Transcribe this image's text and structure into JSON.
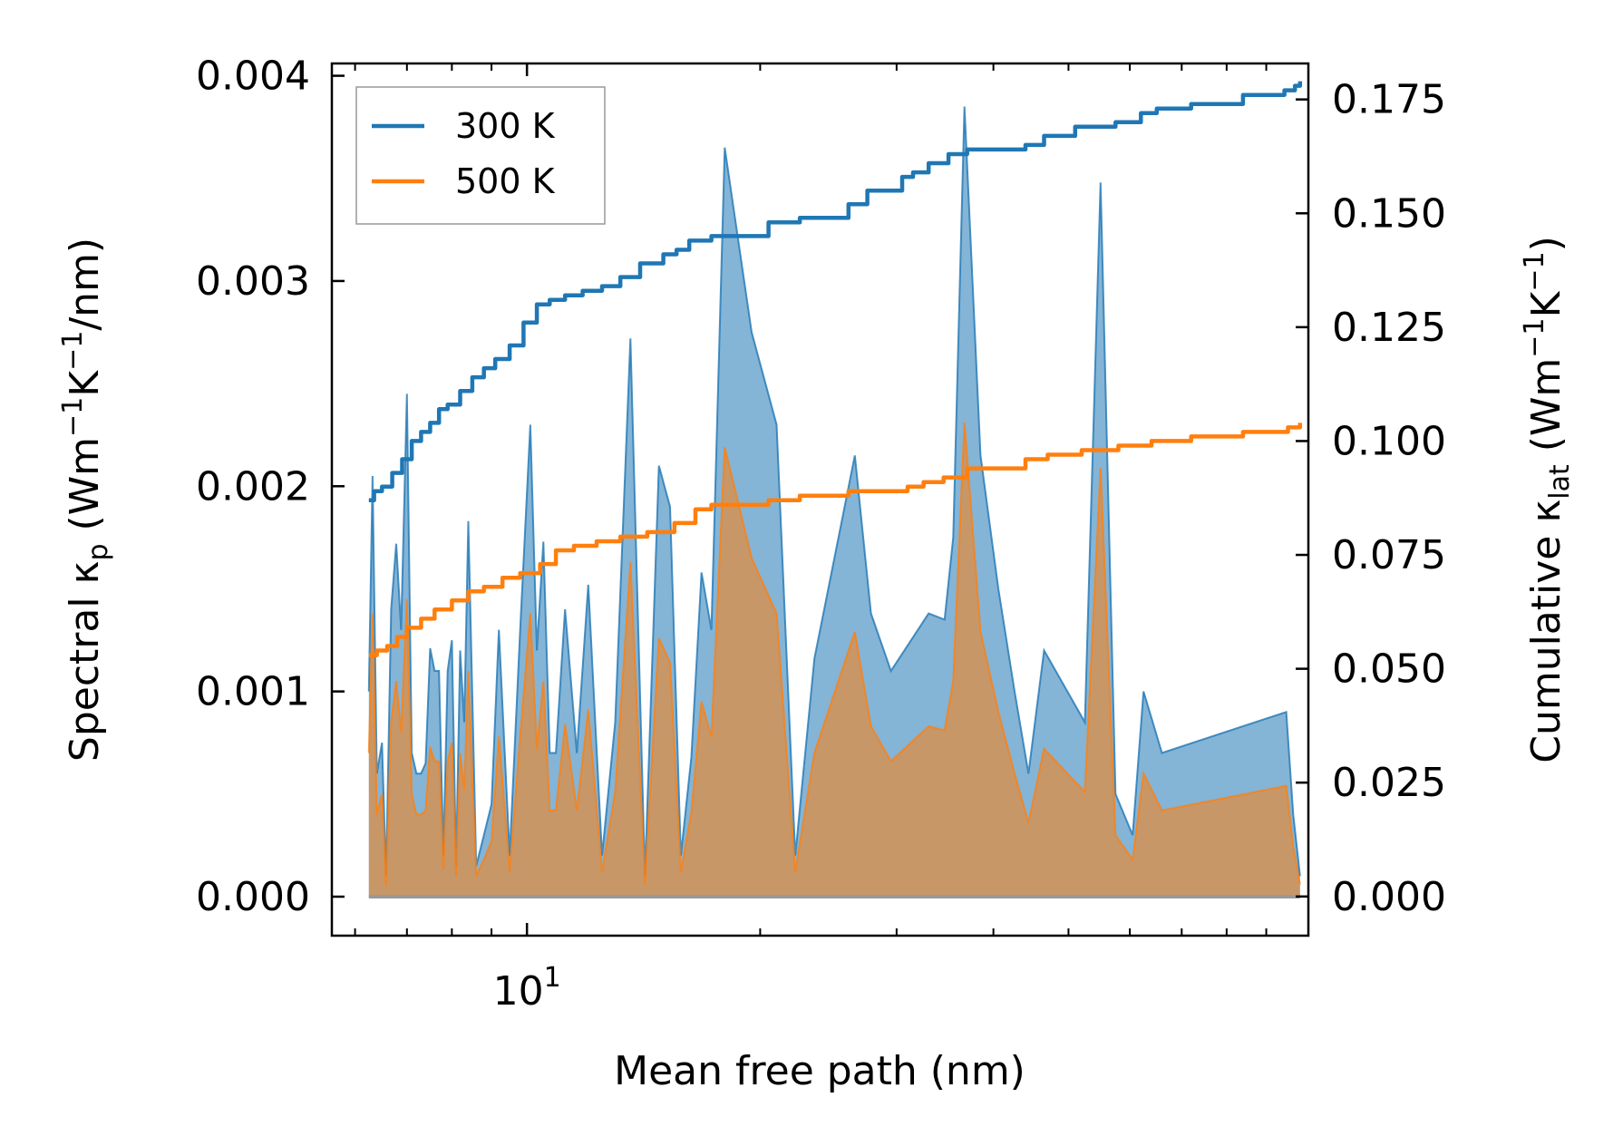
{
  "chart_data": {
    "type": "line",
    "x_scale": "log",
    "xlabel": "Mean free path (nm)",
    "ylabel_left": "Spectral κp (Wm−1K−1/nm)",
    "ylabel_left_parts": {
      "pre": "Spectral κ",
      "sub": "p",
      "mid1": " (Wm",
      "sup1": "−1",
      "mid2": "K",
      "sup2": "−1",
      "post": "/nm)"
    },
    "ylabel_right": "Cumulative κlat (Wm−1K−1)",
    "ylabel_right_parts": {
      "pre": "Cumulative κ",
      "sub": "lat",
      "mid1": " (Wm",
      "sup1": "−1",
      "mid2": "K",
      "sup2": "−1",
      "post": ")"
    },
    "xlim": [
      5.6,
      102
    ],
    "ylim_left": [
      -0.00019,
      0.00406
    ],
    "ylim_right": [
      -0.0086,
      0.1829
    ],
    "x_ticks": [
      {
        "value": 10,
        "base": "10",
        "exp": "1"
      }
    ],
    "x_minor_ticks": [
      6,
      7,
      8,
      9,
      20,
      30,
      40,
      50,
      60,
      70,
      80,
      90
    ],
    "y_left_ticks": [
      {
        "value": 0.0,
        "label": "0.000"
      },
      {
        "value": 0.001,
        "label": "0.001"
      },
      {
        "value": 0.002,
        "label": "0.002"
      },
      {
        "value": 0.003,
        "label": "0.003"
      },
      {
        "value": 0.004,
        "label": "0.004"
      }
    ],
    "y_right_ticks": [
      {
        "value": 0.0,
        "label": "0.000"
      },
      {
        "value": 0.025,
        "label": "0.025"
      },
      {
        "value": 0.05,
        "label": "0.050"
      },
      {
        "value": 0.075,
        "label": "0.075"
      },
      {
        "value": 0.1,
        "label": "0.100"
      },
      {
        "value": 0.125,
        "label": "0.125"
      },
      {
        "value": 0.15,
        "label": "0.150"
      },
      {
        "value": 0.175,
        "label": "0.175"
      }
    ],
    "legend": {
      "position": "top-left",
      "entries": [
        "300 K",
        "500 K"
      ]
    },
    "series": [
      {
        "name": "300 K",
        "color": "#1f77b4",
        "spectral": {
          "x": [
            6.25,
            6.32,
            6.4,
            6.5,
            6.58,
            6.68,
            6.78,
            6.88,
            7.0,
            7.1,
            7.2,
            7.3,
            7.4,
            7.5,
            7.6,
            7.7,
            7.8,
            7.9,
            8.0,
            8.1,
            8.2,
            8.3,
            8.4,
            8.6,
            8.8,
            9.0,
            9.2,
            9.5,
            9.8,
            10.1,
            10.3,
            10.5,
            10.7,
            10.9,
            11.2,
            11.6,
            12.0,
            12.5,
            13.0,
            13.6,
            14.2,
            14.8,
            15.3,
            15.8,
            16.3,
            16.8,
            17.3,
            18.0,
            19.5,
            21.0,
            22.2,
            23.5,
            26.5,
            27.8,
            29.5,
            33.0,
            34.6,
            35.5,
            36.7,
            38.5,
            40.6,
            42.6,
            44.4,
            46.5,
            52.5,
            55.0,
            57.5,
            60.5,
            62.5,
            66.0,
            95.5,
            97.5,
            99.5
          ],
          "y": [
            0.001,
            0.00205,
            0.0006,
            0.00075,
            0.0001,
            0.0014,
            0.00172,
            0.0013,
            0.00245,
            0.0007,
            0.0006,
            0.0006,
            0.00065,
            0.00121,
            0.0011,
            0.0011,
            0.0002,
            0.0011,
            0.00125,
            0.00015,
            0.0012,
            0.00085,
            0.00183,
            0.00015,
            0.0003,
            0.00045,
            0.0013,
            0.0002,
            0.0013,
            0.0023,
            0.0012,
            0.00173,
            0.0007,
            0.0007,
            0.0014,
            0.0007,
            0.00152,
            0.0002,
            0.00085,
            0.00272,
            0.0001,
            0.0021,
            0.0019,
            0.0002,
            0.00068,
            0.00158,
            0.0013,
            0.00365,
            0.00275,
            0.0023,
            0.0002,
            0.00116,
            0.00215,
            0.00138,
            0.0011,
            0.00138,
            0.00135,
            0.00175,
            0.00385,
            0.00215,
            0.0015,
            0.001,
            0.0006,
            0.0012,
            0.00085,
            0.00348,
            0.0005,
            0.0003,
            0.001,
            0.0007,
            0.0009,
            0.0004,
            0.0001
          ]
        },
        "cumulative": {
          "x": [
            6.25,
            6.35,
            6.5,
            6.7,
            6.9,
            7.1,
            7.3,
            7.5,
            7.7,
            7.9,
            8.2,
            8.5,
            8.8,
            9.1,
            9.5,
            9.9,
            10.3,
            10.7,
            11.2,
            11.8,
            12.5,
            13.2,
            14.0,
            15.0,
            15.6,
            16.2,
            17.3,
            20.5,
            22.5,
            26.0,
            27.5,
            30.5,
            31.5,
            33.0,
            35.0,
            37.0,
            44.0,
            46.5,
            51.0,
            57.5,
            62.0,
            65.0,
            72.0,
            84.0,
            95.0,
            98.0,
            99.5
          ],
          "y": [
            0.087,
            0.089,
            0.09,
            0.093,
            0.096,
            0.1,
            0.102,
            0.104,
            0.107,
            0.108,
            0.111,
            0.114,
            0.116,
            0.118,
            0.121,
            0.126,
            0.13,
            0.131,
            0.132,
            0.133,
            0.134,
            0.136,
            0.139,
            0.141,
            0.142,
            0.144,
            0.145,
            0.148,
            0.149,
            0.152,
            0.155,
            0.158,
            0.159,
            0.161,
            0.163,
            0.164,
            0.165,
            0.167,
            0.169,
            0.17,
            0.172,
            0.173,
            0.174,
            0.176,
            0.177,
            0.178,
            0.179
          ]
        }
      },
      {
        "name": "500 K",
        "color": "#ff7f0e",
        "spectral": {
          "x": [
            6.25,
            6.32,
            6.4,
            6.5,
            6.58,
            6.68,
            6.78,
            6.88,
            7.0,
            7.1,
            7.2,
            7.3,
            7.4,
            7.5,
            7.6,
            7.7,
            7.8,
            7.9,
            8.0,
            8.1,
            8.2,
            8.3,
            8.4,
            8.6,
            8.8,
            9.0,
            9.2,
            9.5,
            9.8,
            10.1,
            10.3,
            10.5,
            10.7,
            10.9,
            11.2,
            11.6,
            12.0,
            12.5,
            13.0,
            13.6,
            14.2,
            14.8,
            15.3,
            15.8,
            16.3,
            16.8,
            17.3,
            18.0,
            19.5,
            21.0,
            22.2,
            23.5,
            26.5,
            27.8,
            29.5,
            33.0,
            34.6,
            35.5,
            36.7,
            38.5,
            40.6,
            42.6,
            44.4,
            46.5,
            52.5,
            55.0,
            57.5,
            60.5,
            62.5,
            66.0,
            95.5,
            97.5,
            99.5
          ],
          "y": [
            0.0007,
            0.00138,
            0.0004,
            0.0005,
            5e-05,
            0.00085,
            0.00105,
            0.0008,
            0.00145,
            0.0005,
            0.0004,
            0.0004,
            0.00042,
            0.00073,
            0.00066,
            0.00066,
            0.00013,
            0.00066,
            0.00075,
            0.0001,
            0.0007,
            0.00052,
            0.0011,
            0.0001,
            0.00018,
            0.00027,
            0.00078,
            0.00012,
            0.00078,
            0.00138,
            0.00072,
            0.00105,
            0.00042,
            0.00042,
            0.00084,
            0.00042,
            0.00091,
            0.00012,
            0.00051,
            0.00163,
            6e-05,
            0.00126,
            0.00114,
            0.00012,
            0.00041,
            0.00095,
            0.00078,
            0.00219,
            0.00165,
            0.00138,
            0.00012,
            0.0007,
            0.00129,
            0.00083,
            0.00066,
            0.00083,
            0.00081,
            0.00105,
            0.00231,
            0.00129,
            0.0009,
            0.0006,
            0.00036,
            0.00072,
            0.00051,
            0.00209,
            0.0003,
            0.00018,
            0.0006,
            0.00042,
            0.00054,
            0.00024,
            6e-05
          ]
        },
        "cumulative": {
          "x": [
            6.25,
            6.4,
            6.6,
            6.8,
            7.0,
            7.3,
            7.6,
            8.0,
            8.4,
            8.8,
            9.3,
            9.8,
            10.4,
            10.9,
            11.5,
            12.3,
            13.2,
            14.3,
            15.5,
            16.5,
            17.3,
            20.5,
            22.5,
            26.0,
            27.5,
            31.0,
            32.5,
            34.5,
            37.0,
            44.0,
            47.0,
            52.0,
            58.0,
            64.0,
            72.0,
            84.0,
            96.0,
            99.5
          ],
          "y": [
            0.053,
            0.054,
            0.055,
            0.057,
            0.059,
            0.061,
            0.063,
            0.065,
            0.067,
            0.068,
            0.07,
            0.071,
            0.073,
            0.076,
            0.077,
            0.078,
            0.079,
            0.08,
            0.082,
            0.085,
            0.086,
            0.087,
            0.088,
            0.089,
            0.089,
            0.09,
            0.091,
            0.092,
            0.094,
            0.096,
            0.097,
            0.098,
            0.099,
            0.1,
            0.101,
            0.102,
            0.103,
            0.104
          ]
        }
      }
    ]
  }
}
